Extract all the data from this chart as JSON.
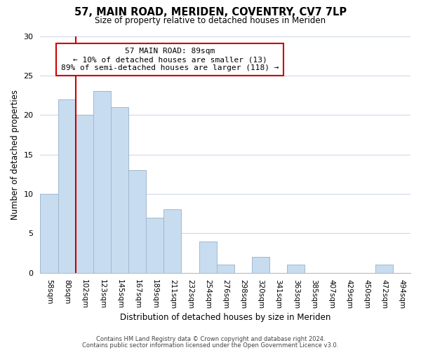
{
  "title": "57, MAIN ROAD, MERIDEN, COVENTRY, CV7 7LP",
  "subtitle": "Size of property relative to detached houses in Meriden",
  "xlabel": "Distribution of detached houses by size in Meriden",
  "ylabel": "Number of detached properties",
  "categories": [
    "58sqm",
    "80sqm",
    "102sqm",
    "123sqm",
    "145sqm",
    "167sqm",
    "189sqm",
    "211sqm",
    "232sqm",
    "254sqm",
    "276sqm",
    "298sqm",
    "320sqm",
    "341sqm",
    "363sqm",
    "385sqm",
    "407sqm",
    "429sqm",
    "450sqm",
    "472sqm",
    "494sqm"
  ],
  "values": [
    10,
    22,
    20,
    23,
    21,
    13,
    7,
    8,
    0,
    4,
    1,
    0,
    2,
    0,
    1,
    0,
    0,
    0,
    0,
    1,
    0
  ],
  "bar_color": "#c8dcf0",
  "bar_edge_color": "#a0b8d0",
  "ref_line_color": "#cc0000",
  "annotation_line1": "57 MAIN ROAD: 89sqm",
  "annotation_line2": "← 10% of detached houses are smaller (13)",
  "annotation_line3": "89% of semi-detached houses are larger (118) →",
  "annotation_box_color": "#ffffff",
  "annotation_box_edge_color": "#cc0000",
  "ylim": [
    0,
    30
  ],
  "yticks": [
    0,
    5,
    10,
    15,
    20,
    25,
    30
  ],
  "footer_line1": "Contains HM Land Registry data © Crown copyright and database right 2024.",
  "footer_line2": "Contains public sector information licensed under the Open Government Licence v3.0.",
  "background_color": "#ffffff",
  "grid_color": "#d0d8e8"
}
